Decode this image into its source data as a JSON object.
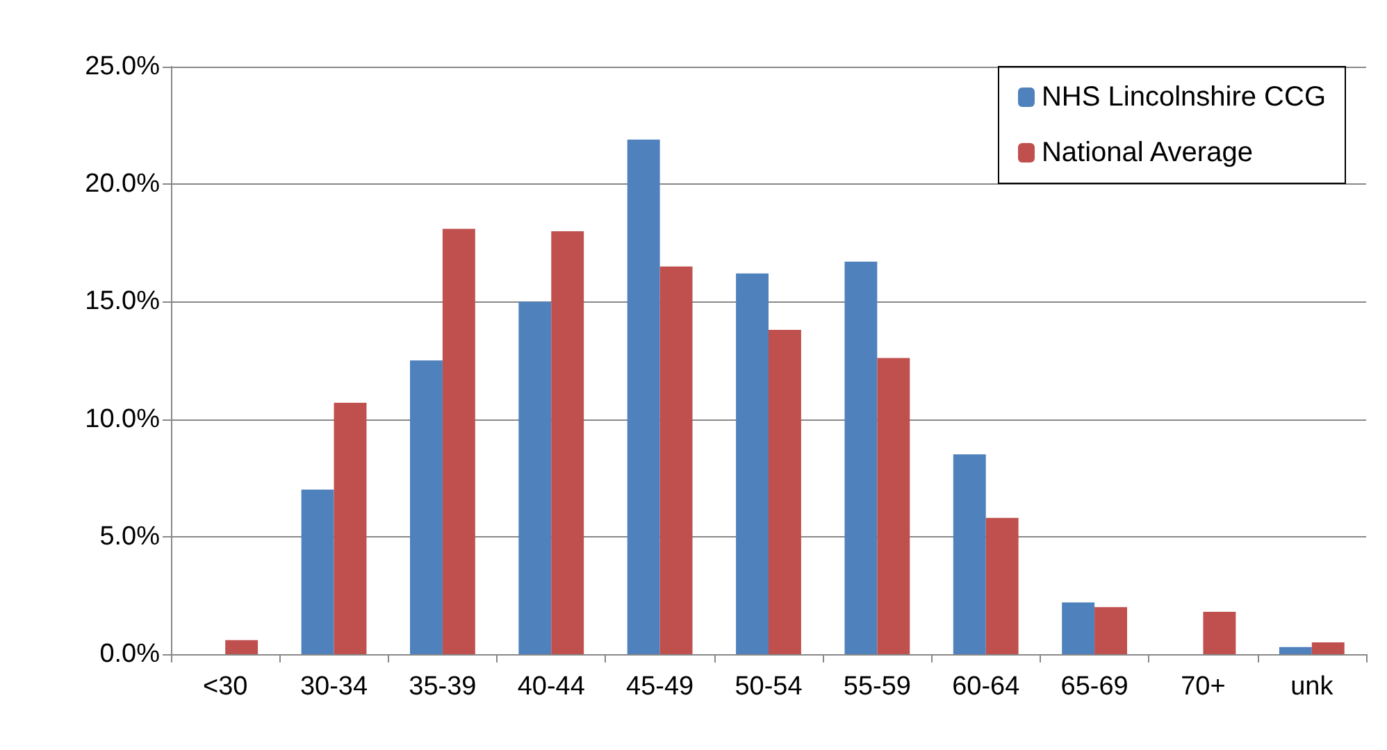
{
  "chart_data": {
    "type": "bar",
    "categories": [
      "<30",
      "30-34",
      "35-39",
      "40-44",
      "45-49",
      "50-54",
      "55-59",
      "60-64",
      "65-69",
      "70+",
      "unk"
    ],
    "series": [
      {
        "name": "NHS Lincolnshire CCG",
        "color": "#4f81bd",
        "values": [
          0,
          7.0,
          12.5,
          15.0,
          21.9,
          16.2,
          16.7,
          8.5,
          2.2,
          0,
          0.3
        ]
      },
      {
        "name": "National Average",
        "color": "#c0504d",
        "values": [
          0.6,
          10.7,
          18.1,
          18.0,
          16.5,
          13.8,
          12.6,
          5.8,
          2.0,
          1.8,
          0.5
        ]
      }
    ],
    "ylim": [
      0,
      25
    ],
    "yticks": [
      {
        "value": 0,
        "label": "0.0%"
      },
      {
        "value": 5,
        "label": "5.0%"
      },
      {
        "value": 10,
        "label": "10.0%"
      },
      {
        "value": 15,
        "label": "15.0%"
      },
      {
        "value": 20,
        "label": "20.0%"
      },
      {
        "value": 25,
        "label": "25.0%"
      }
    ],
    "grid": "y",
    "legend": "top right"
  }
}
